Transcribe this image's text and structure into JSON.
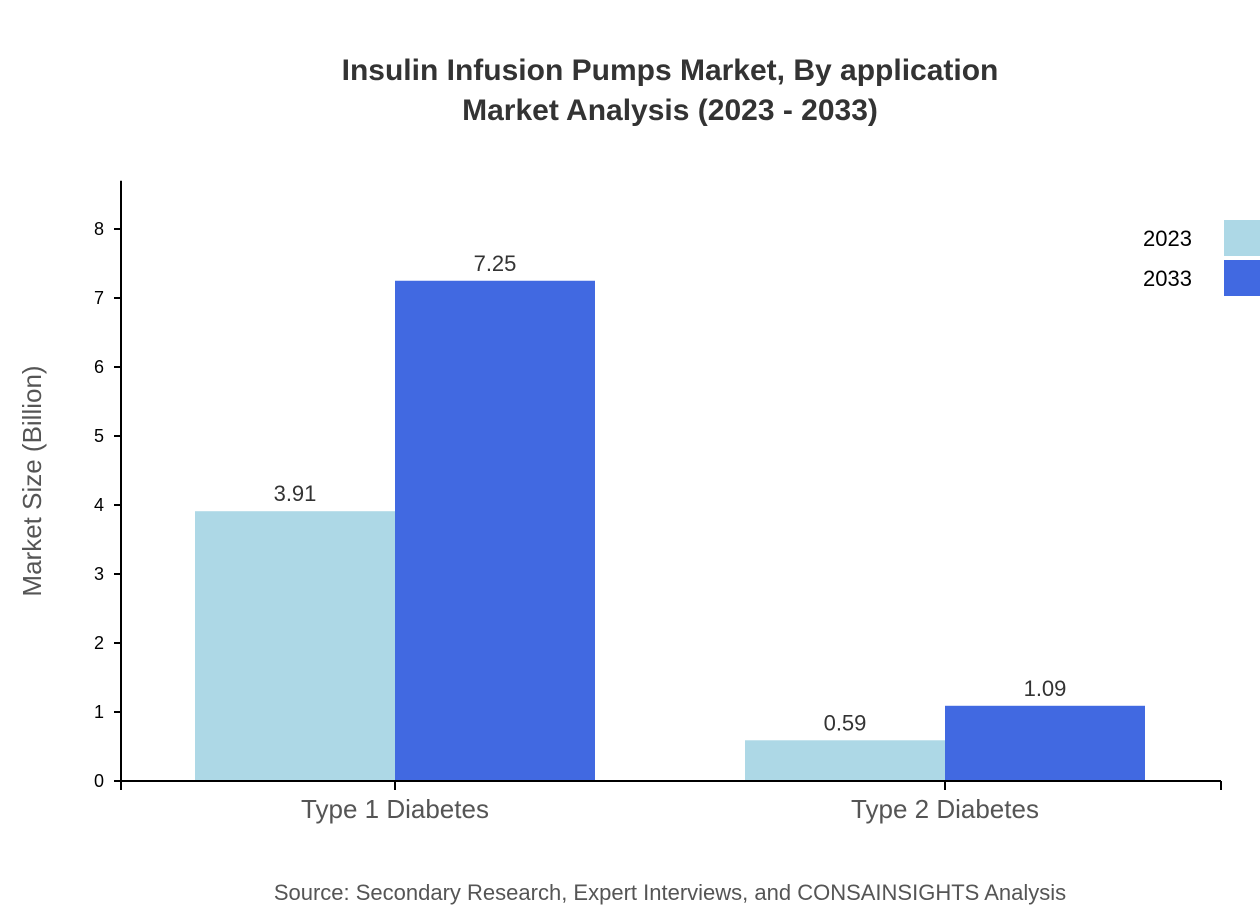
{
  "chart_data": {
    "type": "bar",
    "title": "Insulin Infusion Pumps Market, By application",
    "subtitle": "Market Analysis (2023 - 2033)",
    "xlabel": "",
    "ylabel": "Market Size (Billion)",
    "categories": [
      "Type 1 Diabetes",
      "Type 2 Diabetes"
    ],
    "series": [
      {
        "name": "2023",
        "values": [
          3.91,
          0.59
        ],
        "color": "#ADD8E6"
      },
      {
        "name": "2033",
        "values": [
          7.25,
          1.09
        ],
        "color": "#4169E1"
      }
    ],
    "ylim": [
      0,
      8.7
    ],
    "yticks": [
      0,
      1,
      2,
      3,
      4,
      5,
      6,
      7,
      8
    ],
    "grid": false,
    "legend": "top-right",
    "source": "Source: Secondary Research, Expert Interviews, and CONSAINSIGHTS Analysis"
  }
}
